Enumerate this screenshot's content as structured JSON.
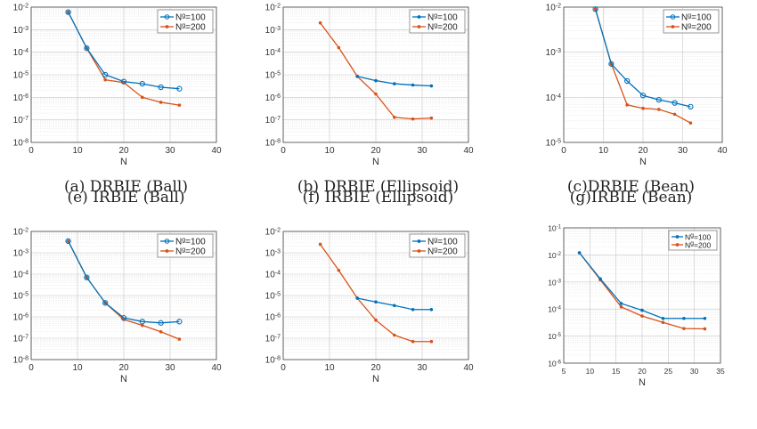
{
  "legend_labels": [
    "N$^g$=100",
    "N$^g$=200"
  ],
  "chart_data": [
    {
      "id": "a",
      "caption": "(a) DRBIE (Ball)",
      "type": "line",
      "y_scale": "log",
      "xlabel": "N",
      "xlim": [
        0,
        40
      ],
      "xticks": [
        0,
        10,
        20,
        30,
        40
      ],
      "ylim": [
        1e-08,
        0.01
      ],
      "yticks": [
        -8,
        -7,
        -6,
        -5,
        -4,
        -3,
        -2
      ],
      "series": [
        {
          "name": "N$^g$=100",
          "color": "#0072BD",
          "marker": "circle",
          "x": [
            8,
            12,
            16,
            20,
            24,
            28,
            32
          ],
          "y": [
            0.006,
            0.00015,
            1e-05,
            5e-06,
            4e-06,
            2.8e-06,
            2.4e-06
          ]
        },
        {
          "name": "N$^g$=200",
          "color": "#D95319",
          "marker": "dot",
          "x": [
            8,
            12,
            16,
            20,
            24,
            28,
            32
          ],
          "y": [
            0.006,
            0.00015,
            6e-06,
            4.5e-06,
            1e-06,
            6e-07,
            4.5e-07
          ]
        }
      ]
    },
    {
      "id": "b",
      "caption": "(b) DRBIE (Ellipsoid)",
      "type": "line",
      "y_scale": "log",
      "xlabel": "N",
      "xlim": [
        0,
        40
      ],
      "xticks": [
        0,
        10,
        20,
        30,
        40
      ],
      "ylim": [
        1e-08,
        0.01
      ],
      "yticks": [
        -8,
        -7,
        -6,
        -5,
        -4,
        -3,
        -2
      ],
      "series": [
        {
          "name": "N$^g$=100",
          "color": "#0072BD",
          "marker": "dot",
          "x": [
            16,
            20,
            24,
            28,
            32
          ],
          "y": [
            8.5e-06,
            5.5e-06,
            4e-06,
            3.5e-06,
            3.2e-06
          ]
        },
        {
          "name": "N$^g$=200",
          "color": "#D95319",
          "marker": "dot",
          "x": [
            8,
            12,
            16,
            20,
            24,
            28,
            32
          ],
          "y": [
            0.002,
            0.00016,
            8.5e-06,
            1.4e-06,
            1.3e-07,
            1.1e-07,
            1.2e-07
          ]
        }
      ]
    },
    {
      "id": "c",
      "caption": "(c)DRBIE (Bean)",
      "type": "line",
      "y_scale": "log",
      "xlabel": "N",
      "xlim": [
        0,
        40
      ],
      "xticks": [
        0,
        10,
        20,
        30,
        40
      ],
      "ylim": [
        1e-05,
        0.01
      ],
      "yticks": [
        -5,
        -4,
        -3,
        -2
      ],
      "series": [
        {
          "name": "N$^g$=100",
          "color": "#0072BD",
          "marker": "circle",
          "x": [
            8,
            12,
            16,
            20,
            24,
            28,
            32
          ],
          "y": [
            0.009,
            0.00055,
            0.00023,
            0.00011,
            8.8e-05,
            7.5e-05,
            6.2e-05
          ]
        },
        {
          "name": "N$^g$=200",
          "color": "#D95319",
          "marker": "dot",
          "x": [
            8,
            12,
            16,
            20,
            24,
            28,
            32
          ],
          "y": [
            0.009,
            0.00055,
            6.8e-05,
            5.7e-05,
            5.4e-05,
            4.2e-05,
            2.7e-05
          ]
        }
      ]
    },
    {
      "id": "e",
      "caption": "(e) IRBIE (Ball)",
      "type": "line",
      "y_scale": "log",
      "xlabel": "N",
      "xlim": [
        0,
        40
      ],
      "xticks": [
        0,
        10,
        20,
        30,
        40
      ],
      "ylim": [
        1e-08,
        0.01
      ],
      "yticks": [
        -8,
        -7,
        -6,
        -5,
        -4,
        -3,
        -2
      ],
      "series": [
        {
          "name": "N$^g$=100",
          "color": "#0072BD",
          "marker": "circle",
          "x": [
            8,
            12,
            16,
            20,
            24,
            28,
            32
          ],
          "y": [
            0.0035,
            7e-05,
            4.5e-06,
            9e-07,
            6e-07,
            5.2e-07,
            6e-07
          ]
        },
        {
          "name": "N$^g$=200",
          "color": "#D95319",
          "marker": "dot",
          "x": [
            8,
            12,
            16,
            20,
            24,
            28,
            32
          ],
          "y": [
            0.0035,
            7e-05,
            4.5e-06,
            7.5e-07,
            4e-07,
            2e-07,
            9e-08
          ]
        }
      ]
    },
    {
      "id": "f",
      "caption": "(f) IRBIE (Ellipsoid)",
      "type": "line",
      "y_scale": "log",
      "xlabel": "N",
      "xlim": [
        0,
        40
      ],
      "xticks": [
        0,
        10,
        20,
        30,
        40
      ],
      "ylim": [
        1e-08,
        0.01
      ],
      "yticks": [
        -8,
        -7,
        -6,
        -5,
        -4,
        -3,
        -2
      ],
      "series": [
        {
          "name": "N$^g$=100",
          "color": "#0072BD",
          "marker": "dot",
          "x": [
            16,
            20,
            24,
            28,
            32
          ],
          "y": [
            7.5e-06,
            5e-06,
            3.4e-06,
            2.2e-06,
            2.2e-06
          ]
        },
        {
          "name": "N$^g$=200",
          "color": "#D95319",
          "marker": "dot",
          "x": [
            8,
            12,
            16,
            20,
            24,
            28,
            32
          ],
          "y": [
            0.0025,
            0.00015,
            7.5e-06,
            7e-07,
            1.4e-07,
            7e-08,
            7e-08
          ]
        }
      ]
    },
    {
      "id": "g",
      "caption": "(g)IRBIE (Bean)",
      "type": "line",
      "y_scale": "log",
      "xlabel": "N",
      "xlim": [
        5,
        35
      ],
      "xticks": [
        5,
        10,
        15,
        20,
        25,
        30,
        35
      ],
      "ylim": [
        1e-06,
        0.1
      ],
      "yticks": [
        -6,
        -5,
        -4,
        -3,
        -2,
        -1
      ],
      "series": [
        {
          "name": "N$^g$=100",
          "color": "#0072BD",
          "marker": "dot",
          "x": [
            8,
            12,
            16,
            20,
            24,
            28,
            32
          ],
          "y": [
            0.012,
            0.0013,
            0.00016,
            9e-05,
            4.5e-05,
            4.5e-05,
            4.5e-05
          ]
        },
        {
          "name": "N$^g$=200",
          "color": "#D95319",
          "marker": "dot",
          "x": [
            8,
            12,
            16,
            20,
            24,
            28,
            32
          ],
          "y": [
            0.012,
            0.0012,
            0.00012,
            5.5e-05,
            3.2e-05,
            1.9e-05,
            1.85e-05
          ]
        }
      ]
    }
  ]
}
